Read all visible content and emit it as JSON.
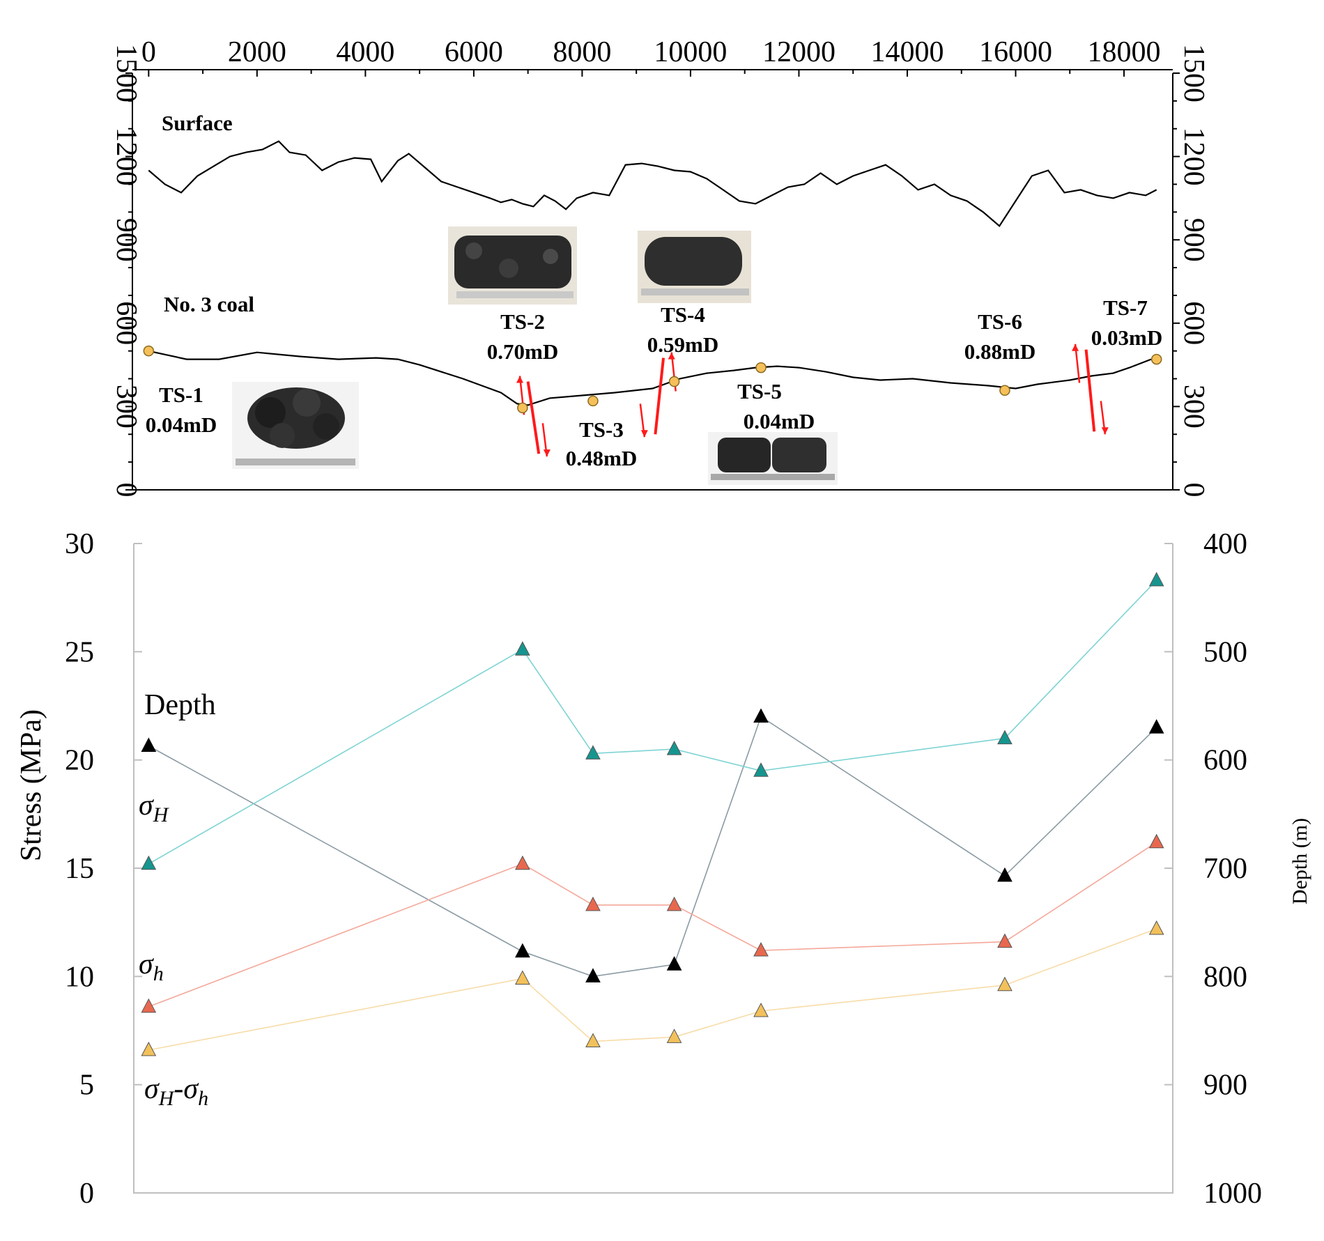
{
  "chart_data": [
    {
      "type": "line",
      "title": "",
      "xlabel": "",
      "ylabel": "",
      "xlim": [
        -300,
        18900
      ],
      "ylim": [
        0,
        1500
      ],
      "x_ticks": [
        0,
        2000,
        4000,
        6000,
        8000,
        10000,
        12000,
        14000,
        16000,
        18000
      ],
      "y_ticks": [
        0,
        300,
        600,
        900,
        1200,
        1500
      ],
      "labels": {
        "surface": "Surface",
        "coal": "No. 3 coal"
      },
      "series": [
        {
          "name": "Surface",
          "x": [
            0,
            300,
            600,
            900,
            1200,
            1500,
            1800,
            2100,
            2400,
            2600,
            2900,
            3200,
            3500,
            3800,
            4100,
            4300,
            4600,
            4800,
            5100,
            5400,
            5700,
            6000,
            6300,
            6500,
            6700,
            6900,
            7100,
            7300,
            7500,
            7700,
            7900,
            8200,
            8500,
            8800,
            9100,
            9400,
            9700,
            10000,
            10300,
            10600,
            10900,
            11200,
            11500,
            11800,
            12100,
            12400,
            12700,
            13000,
            13300,
            13600,
            13900,
            14200,
            14500,
            14800,
            15100,
            15400,
            15700,
            16000,
            16300,
            16600,
            16900,
            17200,
            17500,
            17800,
            18100,
            18400,
            18600
          ],
          "y": [
            1150,
            1100,
            1070,
            1130,
            1165,
            1200,
            1215,
            1225,
            1255,
            1215,
            1205,
            1150,
            1180,
            1195,
            1190,
            1110,
            1185,
            1210,
            1160,
            1110,
            1090,
            1070,
            1050,
            1035,
            1045,
            1030,
            1020,
            1060,
            1040,
            1010,
            1050,
            1070,
            1060,
            1170,
            1175,
            1165,
            1150,
            1145,
            1120,
            1080,
            1040,
            1030,
            1060,
            1090,
            1100,
            1140,
            1100,
            1130,
            1150,
            1170,
            1130,
            1080,
            1100,
            1060,
            1040,
            1000,
            950,
            1040,
            1130,
            1150,
            1070,
            1080,
            1060,
            1050,
            1070,
            1060,
            1080
          ]
        },
        {
          "name": "No. 3 coal",
          "x": [
            0,
            700,
            1300,
            2000,
            2800,
            3500,
            4200,
            4600,
            5000,
            5800,
            6500,
            6800,
            7000,
            7400,
            8000,
            8600,
            9300,
            9800,
            10300,
            10800,
            11200,
            11600,
            12000,
            12500,
            13000,
            13500,
            14100,
            14800,
            15500,
            16000,
            16400,
            17000,
            17400,
            17800,
            18100,
            18500
          ],
          "y": [
            500,
            470,
            470,
            495,
            480,
            470,
            475,
            470,
            450,
            400,
            350,
            310,
            305,
            330,
            340,
            350,
            365,
            400,
            420,
            430,
            440,
            445,
            440,
            425,
            405,
            395,
            400,
            385,
            375,
            365,
            380,
            395,
            410,
            420,
            440,
            470
          ]
        }
      ],
      "stations": [
        {
          "label": "TS-1",
          "permeability": "0.04mD",
          "x": 0,
          "y": 500
        },
        {
          "label": "TS-2",
          "permeability": "0.70mD",
          "x": 6900,
          "y": 295
        },
        {
          "label": "TS-3",
          "permeability": "0.48mD",
          "x": 8200,
          "y": 320
        },
        {
          "label": "TS-4",
          "permeability": "0.59mD",
          "x": 9700,
          "y": 390
        },
        {
          "label": "TS-5",
          "permeability": "0.04mD",
          "x": 11300,
          "y": 440
        },
        {
          "label": "TS-6",
          "permeability": "0.88mD",
          "x": 15800,
          "y": 358
        },
        {
          "label": "TS-7",
          "permeability": "0.03mD",
          "x": 18600,
          "y": 470
        }
      ],
      "faults": [
        {
          "x_top": 7000,
          "y_top": 390,
          "x_bottom": 7200,
          "y_bottom": 130,
          "arrow_up_x": 6850,
          "arrow_down_x": 7350
        },
        {
          "x_top": 9500,
          "y_top": 475,
          "x_bottom": 9350,
          "y_bottom": 200,
          "arrow_up_x": 9650,
          "arrow_down_x": 9150
        },
        {
          "x_top": 17300,
          "y_top": 505,
          "x_bottom": 17450,
          "y_bottom": 210,
          "arrow_up_x": 17100,
          "arrow_down_x": 17650
        }
      ],
      "colors": {
        "line": "#000000",
        "station_fill": "#f5c05a",
        "station_stroke": "#8a6a20",
        "fault": "#ff1a1a"
      }
    },
    {
      "type": "line",
      "title": "",
      "xlabel": "",
      "ylabel": "Stress (MPa)",
      "y2label": "Depth (m)",
      "ylim": [
        0,
        30
      ],
      "y2lim": [
        400,
        1000
      ],
      "y_ticks": [
        0,
        5,
        10,
        15,
        20,
        25,
        30
      ],
      "y2_ticks": [
        400,
        500,
        600,
        700,
        800,
        900,
        1000
      ],
      "x_positions": [
        0,
        6900,
        8200,
        9700,
        11300,
        15800,
        18600
      ],
      "series": [
        {
          "name": "σH",
          "axis": "left",
          "color": "#16958f",
          "line_color": "#7fd3d3",
          "values": [
            15.2,
            25.1,
            20.3,
            20.5,
            19.5,
            21.0,
            28.3
          ]
        },
        {
          "name": "σh",
          "axis": "left",
          "color": "#e8684f",
          "line_color": "#f4a89a",
          "values": [
            8.6,
            15.2,
            13.3,
            13.3,
            11.2,
            11.6,
            16.2
          ]
        },
        {
          "name": "σH-σh",
          "axis": "left",
          "color": "#f2c15b",
          "line_color": "#f7dca8",
          "values": [
            6.6,
            9.9,
            7.0,
            7.2,
            8.4,
            9.6,
            12.2
          ]
        },
        {
          "name": "Depth",
          "axis": "right",
          "color": "#000000",
          "line_color": "#8a9ba3",
          "values": [
            587,
            777,
            800,
            789,
            560,
            707,
            570
          ]
        }
      ],
      "series_labels": {
        "depth": "Depth",
        "sigma_H_base": "σ",
        "sigma_H_sub": "H",
        "sigma_h_base": "σ",
        "sigma_h_sub": "h",
        "diff_base1": "σ",
        "diff_sub1": "H",
        "diff_mid": "-σ",
        "diff_sub2": "h"
      }
    }
  ]
}
